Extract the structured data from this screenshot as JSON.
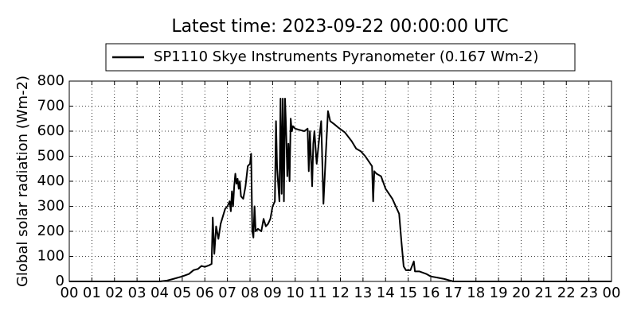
{
  "chart_data": {
    "type": "line",
    "title": "Latest time: 2023-09-22 00:00:00 UTC",
    "ylabel": "Global solar radiation (Wm-2)",
    "legend": "upper center",
    "grid": true,
    "x": [
      0,
      4.0,
      4.3,
      4.6,
      5.0,
      5.3,
      5.5,
      5.7,
      5.85,
      6.0,
      6.2,
      6.3,
      6.35,
      6.42,
      6.5,
      6.6,
      6.7,
      6.8,
      6.9,
      7.0,
      7.1,
      7.15,
      7.2,
      7.25,
      7.3,
      7.35,
      7.4,
      7.45,
      7.5,
      7.55,
      7.6,
      7.7,
      7.8,
      7.9,
      8.0,
      8.05,
      8.1,
      8.15,
      8.2,
      8.25,
      8.35,
      8.5,
      8.6,
      8.7,
      8.8,
      8.9,
      9.0,
      9.1,
      9.15,
      9.2,
      9.3,
      9.35,
      9.4,
      9.45,
      9.5,
      9.55,
      9.6,
      9.65,
      9.7,
      9.75,
      9.8,
      9.85,
      9.9,
      10.0,
      10.2,
      10.4,
      10.55,
      10.6,
      10.65,
      10.75,
      10.8,
      10.85,
      10.95,
      11.05,
      11.15,
      11.25,
      11.35,
      11.45,
      11.55,
      11.7,
      11.9,
      12.2,
      12.5,
      12.7,
      12.9,
      13.1,
      13.4,
      13.45,
      13.5,
      13.6,
      13.8,
      14.0,
      14.3,
      14.5,
      14.6,
      14.7,
      14.8,
      14.9,
      15.1,
      15.25,
      15.3,
      15.5,
      15.8,
      16.0,
      16.3,
      16.6,
      16.8,
      17.0,
      24
    ],
    "series": [
      {
        "name": "SP1110 Skye Instruments Pyranometer (0.167 Wm-2)",
        "color": "#000000",
        "values": [
          0,
          0,
          3,
          10,
          20,
          30,
          45,
          50,
          62,
          58,
          65,
          70,
          255,
          110,
          220,
          170,
          230,
          260,
          290,
          300,
          320,
          280,
          360,
          300,
          380,
          430,
          390,
          410,
          370,
          400,
          340,
          330,
          380,
          460,
          470,
          510,
          200,
          175,
          300,
          200,
          210,
          200,
          250,
          220,
          230,
          250,
          300,
          320,
          640,
          450,
          320,
          730,
          350,
          730,
          320,
          730,
          600,
          420,
          550,
          400,
          650,
          600,
          620,
          610,
          605,
          600,
          610,
          440,
          600,
          380,
          550,
          600,
          470,
          560,
          640,
          310,
          500,
          680,
          640,
          630,
          615,
          595,
          560,
          530,
          520,
          500,
          460,
          320,
          440,
          430,
          420,
          370,
          330,
          290,
          270,
          160,
          60,
          45,
          45,
          80,
          40,
          40,
          30,
          20,
          15,
          10,
          5,
          0,
          0
        ]
      }
    ],
    "xlim": [
      0,
      24
    ],
    "xticks": [
      {
        "value": 0,
        "label": "00"
      },
      {
        "value": 1,
        "label": "01"
      },
      {
        "value": 2,
        "label": "02"
      },
      {
        "value": 3,
        "label": "03"
      },
      {
        "value": 4,
        "label": "04"
      },
      {
        "value": 5,
        "label": "05"
      },
      {
        "value": 6,
        "label": "06"
      },
      {
        "value": 7,
        "label": "07"
      },
      {
        "value": 8,
        "label": "08"
      },
      {
        "value": 9,
        "label": "09"
      },
      {
        "value": 10,
        "label": "10"
      },
      {
        "value": 11,
        "label": "11"
      },
      {
        "value": 12,
        "label": "12"
      },
      {
        "value": 13,
        "label": "13"
      },
      {
        "value": 14,
        "label": "14"
      },
      {
        "value": 15,
        "label": "15"
      },
      {
        "value": 16,
        "label": "16"
      },
      {
        "value": 17,
        "label": "17"
      },
      {
        "value": 18,
        "label": "18"
      },
      {
        "value": 19,
        "label": "19"
      },
      {
        "value": 20,
        "label": "20"
      },
      {
        "value": 21,
        "label": "21"
      },
      {
        "value": 22,
        "label": "22"
      },
      {
        "value": 23,
        "label": "23"
      },
      {
        "value": 24,
        "label": "00"
      }
    ],
    "ylim": [
      0,
      800
    ],
    "yticks": [
      0,
      100,
      200,
      300,
      400,
      500,
      600,
      700,
      800
    ]
  }
}
